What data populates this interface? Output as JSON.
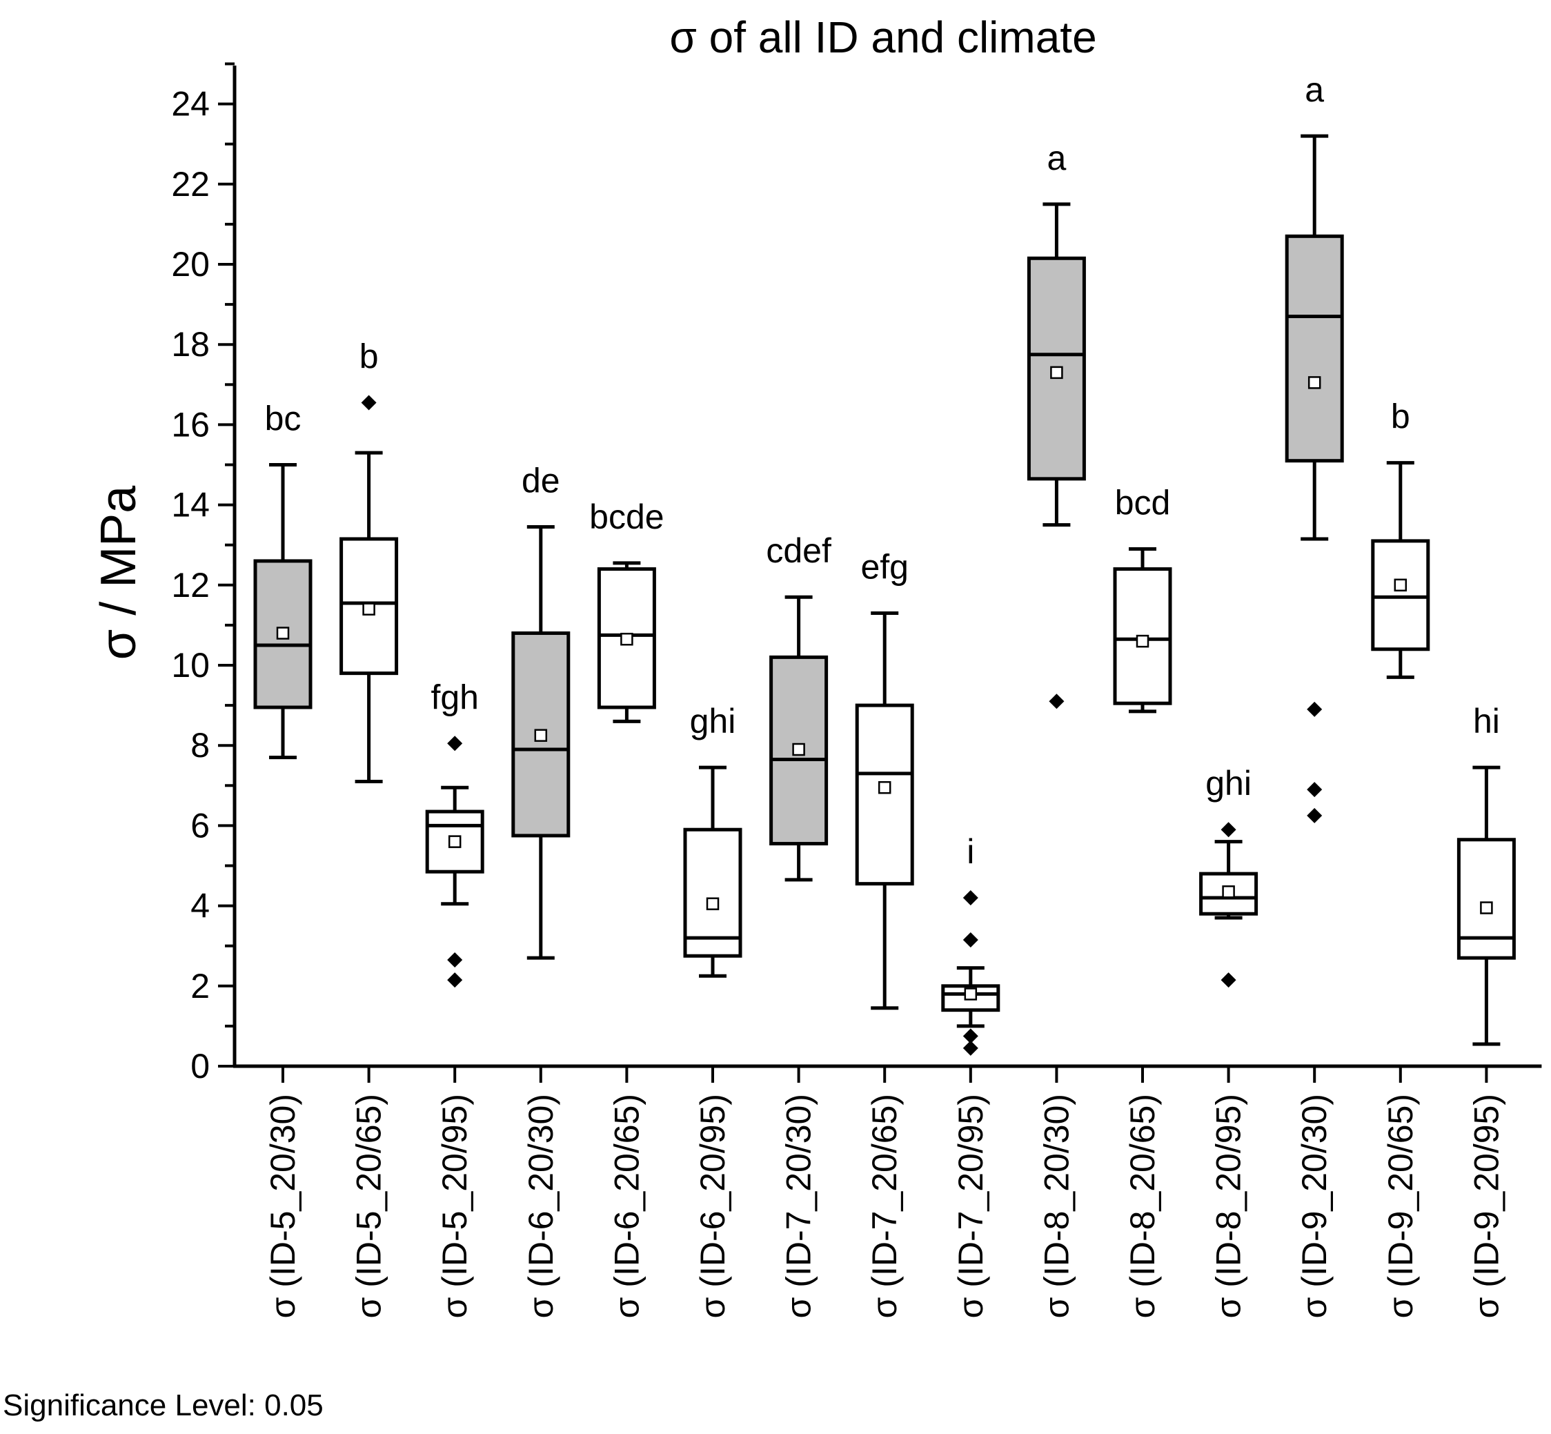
{
  "chart_data": {
    "type": "boxplot",
    "title": "σ of all ID and climate",
    "ylabel": "σ / MPa",
    "xlabel": "",
    "ylim": [
      0,
      25
    ],
    "yticks": [
      0,
      2,
      4,
      6,
      8,
      10,
      12,
      14,
      16,
      18,
      20,
      22,
      24
    ],
    "grid": false,
    "footnote": "Significance Level: 0.05",
    "colors": {
      "shaded_fill": "#c0c0c0",
      "open_fill": "#ffffff",
      "stroke": "#000000"
    },
    "categories": [
      {
        "label": "σ (ID-5_20/30)",
        "group_letter": "bc",
        "shaded": true,
        "whisker_low": 7.7,
        "q1": 8.95,
        "median": 10.5,
        "q3": 12.6,
        "whisker_high": 15.0,
        "mean": 10.8,
        "outliers": []
      },
      {
        "label": "σ (ID-5_20/65)",
        "group_letter": "b",
        "shaded": false,
        "whisker_low": 7.1,
        "q1": 9.8,
        "median": 11.55,
        "q3": 13.15,
        "whisker_high": 15.3,
        "mean": 11.4,
        "outliers": [
          16.55
        ]
      },
      {
        "label": "σ (ID-5_20/95)",
        "group_letter": "fgh",
        "shaded": false,
        "whisker_low": 4.05,
        "q1": 4.85,
        "median": 6.0,
        "q3": 6.35,
        "whisker_high": 6.95,
        "mean": 5.6,
        "outliers": [
          8.05,
          2.65,
          2.15
        ]
      },
      {
        "label": "σ (ID-6_20/30)",
        "group_letter": "de",
        "shaded": true,
        "whisker_low": 2.7,
        "q1": 5.75,
        "median": 7.9,
        "q3": 10.8,
        "whisker_high": 13.45,
        "mean": 8.25,
        "outliers": []
      },
      {
        "label": "σ (ID-6_20/65)",
        "group_letter": "bcde",
        "shaded": false,
        "whisker_low": 8.6,
        "q1": 8.95,
        "median": 10.75,
        "q3": 12.4,
        "whisker_high": 12.55,
        "mean": 10.65,
        "outliers": []
      },
      {
        "label": "σ (ID-6_20/95)",
        "group_letter": "ghi",
        "shaded": false,
        "whisker_low": 2.25,
        "q1": 2.75,
        "median": 3.2,
        "q3": 5.9,
        "whisker_high": 7.45,
        "mean": 4.05,
        "outliers": []
      },
      {
        "label": "σ (ID-7_20/30)",
        "group_letter": "cdef",
        "shaded": true,
        "whisker_low": 4.65,
        "q1": 5.55,
        "median": 7.65,
        "q3": 10.2,
        "whisker_high": 11.7,
        "mean": 7.9,
        "outliers": []
      },
      {
        "label": "σ (ID-7_20/65)",
        "group_letter": "efg",
        "shaded": false,
        "whisker_low": 1.45,
        "q1": 4.55,
        "median": 7.3,
        "q3": 9.0,
        "whisker_high": 11.3,
        "mean": 6.95,
        "outliers": []
      },
      {
        "label": "σ (ID-7_20/95)",
        "group_letter": "i",
        "shaded": false,
        "whisker_low": 1.0,
        "q1": 1.4,
        "median": 1.8,
        "q3": 2.0,
        "whisker_high": 2.45,
        "mean": 1.8,
        "outliers": [
          4.2,
          3.15,
          0.75,
          0.45
        ]
      },
      {
        "label": "σ (ID-8_20/30)",
        "group_letter": "a",
        "shaded": true,
        "whisker_low": 13.5,
        "q1": 14.65,
        "median": 17.75,
        "q3": 20.15,
        "whisker_high": 21.5,
        "mean": 17.3,
        "outliers": [
          9.1
        ]
      },
      {
        "label": "σ (ID-8_20/65)",
        "group_letter": "bcd",
        "shaded": false,
        "whisker_low": 8.85,
        "q1": 9.05,
        "median": 10.65,
        "q3": 12.4,
        "whisker_high": 12.9,
        "mean": 10.6,
        "outliers": []
      },
      {
        "label": "σ (ID-8_20/95)",
        "group_letter": "ghi",
        "shaded": false,
        "whisker_low": 3.7,
        "q1": 3.8,
        "median": 4.2,
        "q3": 4.8,
        "whisker_high": 5.6,
        "mean": 4.35,
        "outliers": [
          5.9,
          2.15
        ]
      },
      {
        "label": "σ (ID-9_20/30)",
        "group_letter": "a",
        "shaded": true,
        "whisker_low": 13.15,
        "q1": 15.1,
        "median": 18.7,
        "q3": 20.7,
        "whisker_high": 23.2,
        "mean": 17.05,
        "outliers": [
          8.9,
          6.9,
          6.25
        ]
      },
      {
        "label": "σ (ID-9_20/65)",
        "group_letter": "b",
        "shaded": false,
        "whisker_low": 9.7,
        "q1": 10.4,
        "median": 11.7,
        "q3": 13.1,
        "whisker_high": 15.05,
        "mean": 12.0,
        "outliers": []
      },
      {
        "label": "σ (ID-9_20/95)",
        "group_letter": "hi",
        "shaded": false,
        "whisker_low": 0.55,
        "q1": 2.7,
        "median": 3.2,
        "q3": 5.65,
        "whisker_high": 7.45,
        "mean": 3.95,
        "outliers": []
      }
    ]
  }
}
